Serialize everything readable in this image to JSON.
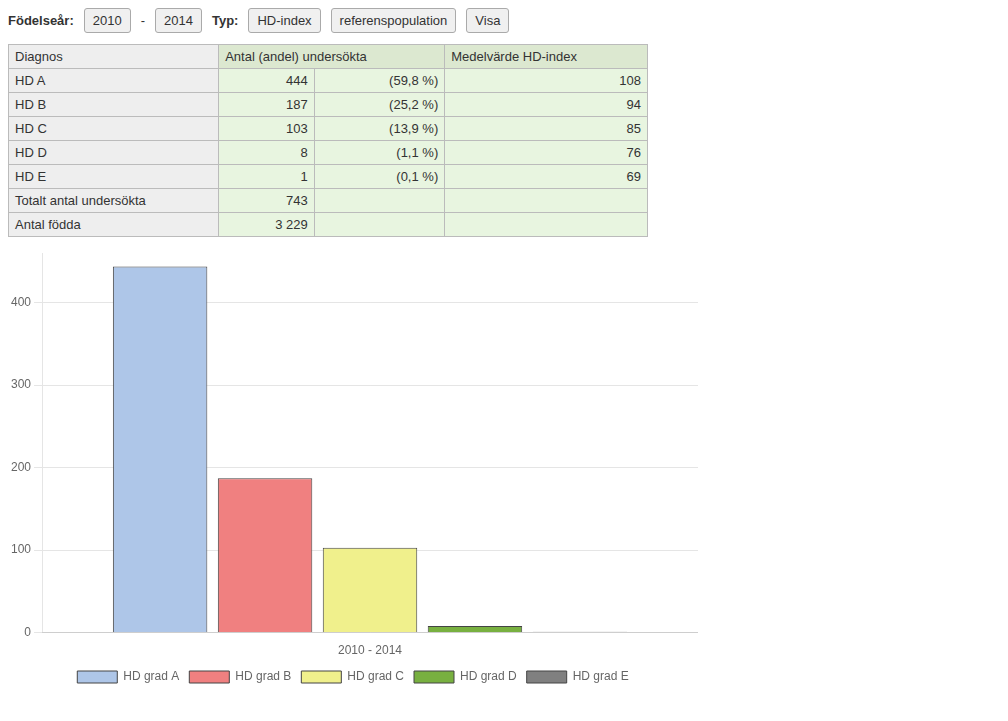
{
  "chart_data": {
    "type": "bar",
    "annotations": [
      [
        "Födelseår:",
        "2010",
        "-",
        "2014",
        "Typ:",
        "HD-index",
        "referenspopulation",
        "Visa"
      ],
      [
        "Diagnos",
        "Antal (andel) undersökta",
        "Medelvärde HD-index"
      ],
      [
        "HD A",
        "444",
        "(59,8 %)",
        "108"
      ],
      [
        "HD B",
        "187",
        "(25,2 %)",
        "94"
      ],
      [
        "HD C",
        "103",
        "(13,9 %)",
        "85"
      ],
      [
        "HD D",
        "8",
        "(1,1 %)",
        "76"
      ],
      [
        "HD E",
        "1",
        "(0,1 %)",
        "69"
      ],
      [
        "Totalt antal undersökta",
        "743"
      ],
      [
        "Antal födda",
        "3 229"
      ]
    ],
    "categories": [
      "2010 - 2014"
    ],
    "series": [
      {
        "name": "HD grad A",
        "color": "#aec6e8",
        "values": [
          444
        ]
      },
      {
        "name": "HD grad B",
        "color": "#f08080",
        "values": [
          187
        ]
      },
      {
        "name": "HD grad C",
        "color": "#f0f08c",
        "values": [
          103
        ]
      },
      {
        "name": "HD grad D",
        "color": "#78b040",
        "values": [
          8
        ]
      },
      {
        "name": "HD grad E",
        "color": "#808080",
        "values": [
          1
        ]
      }
    ],
    "ylim": [
      0,
      460
    ],
    "yticks": [
      0,
      100,
      200,
      300,
      400
    ],
    "grid": true,
    "legend": "bottom"
  }
}
